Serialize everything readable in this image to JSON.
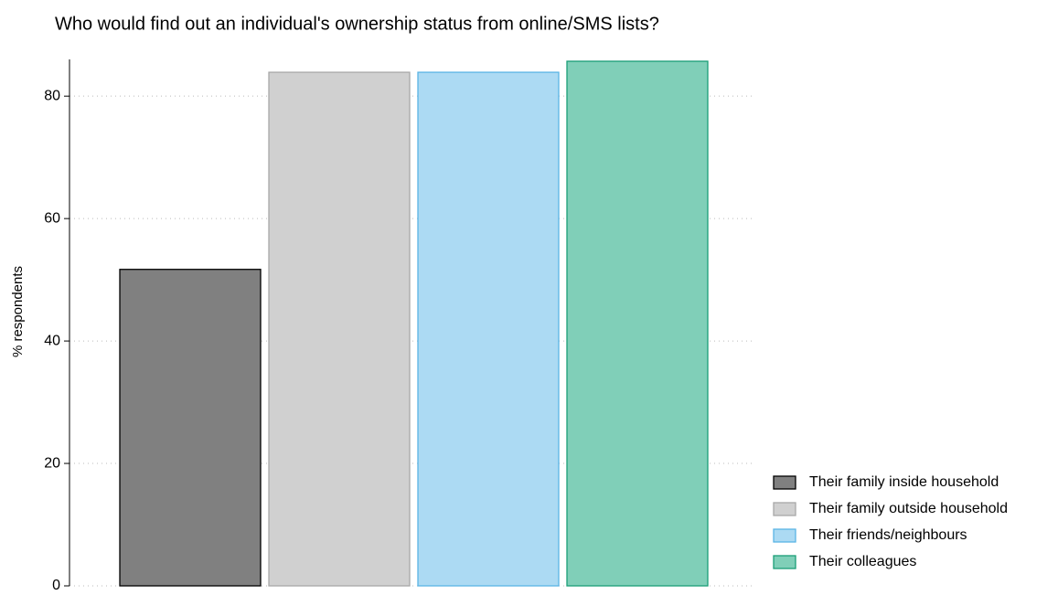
{
  "chart_data": {
    "type": "bar",
    "title": "Who would find out an individual's ownership status from online/SMS lists?",
    "y_label": "% respondents",
    "series": [
      {
        "name": "Their family inside household",
        "color": "#808080",
        "edgecolor": "#000000",
        "values": [
          51.7
        ]
      },
      {
        "name": "Their family outside household",
        "color": "#d0d0d0",
        "edgecolor": "#a8a8a8",
        "values": [
          83.9
        ]
      },
      {
        "name": "Their friends/neighbours",
        "color": "#acdaf3",
        "edgecolor": "#5ab4e5",
        "values": [
          83.9
        ]
      },
      {
        "name": "Their colleagues",
        "color": "#80cfb8",
        "edgecolor": "#1a9e77",
        "values": [
          85.7
        ]
      }
    ],
    "ylim": [
      0,
      86
    ],
    "yticks": [
      0,
      20,
      40,
      60,
      80
    ],
    "grid": true,
    "legend": "lower right"
  }
}
